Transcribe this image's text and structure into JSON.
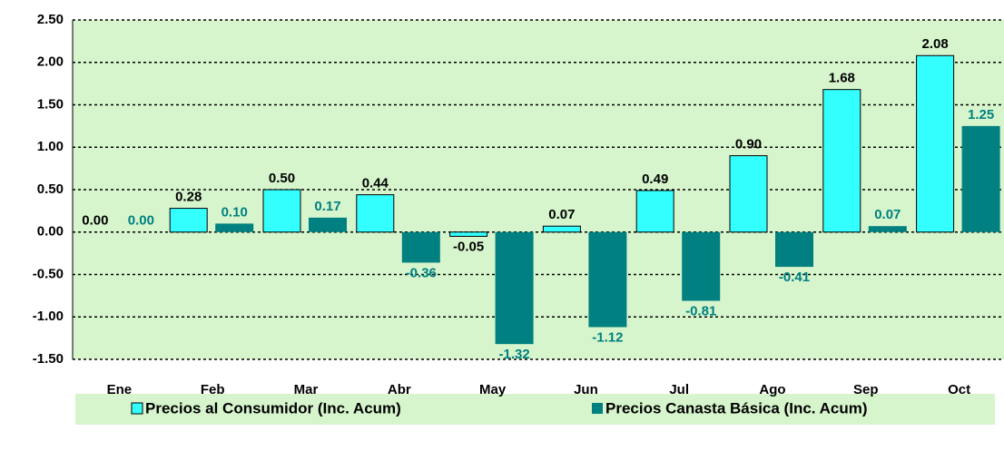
{
  "chart_data": {
    "type": "bar",
    "categories": [
      "Ene",
      "Feb",
      "Mar",
      "Abr",
      "May",
      "Jun",
      "Jul",
      "Ago",
      "Sep",
      "Oct"
    ],
    "series": [
      {
        "name": "Precios al Consumidor (Inc. Acum)",
        "color": "#33ffff",
        "values": [
          0,
          0.28,
          0.5,
          0.44,
          -0.05,
          0.07,
          0.49,
          0.9,
          1.68,
          2.08
        ],
        "value_labels": [
          "0.00",
          "0.28",
          "0.50",
          "0.44",
          "-0.05",
          "0.07",
          "0.49",
          "0.90",
          "1.68",
          "2.08"
        ]
      },
      {
        "name": "Precios Canasta Básica (Inc. Acum)",
        "color": "#008080",
        "values": [
          0,
          0.1,
          0.17,
          -0.36,
          -1.32,
          -1.12,
          -0.81,
          -0.41,
          0.07,
          1.25
        ],
        "value_labels": [
          "0.00",
          "0.10",
          "0.17",
          "-0.36",
          "-1.32",
          "-1.12",
          "-0.81",
          "-0.41",
          "0.07",
          "1.25"
        ]
      }
    ],
    "ylim": [
      -1.5,
      2.5
    ],
    "yticks": [
      {
        "value": 2.5,
        "label": "2.50"
      },
      {
        "value": 2,
        "label": "2.00"
      },
      {
        "value": 1.5,
        "label": "1.50"
      },
      {
        "value": 1,
        "label": "1.00"
      },
      {
        "value": 0.5,
        "label": "0.50"
      },
      {
        "value": 0,
        "label": "0.00"
      },
      {
        "value": -0.5,
        "label": "-0.50"
      },
      {
        "value": -1,
        "label": "-1.00"
      },
      {
        "value": -1.5,
        "label": "-1.50"
      }
    ],
    "grid": true
  }
}
